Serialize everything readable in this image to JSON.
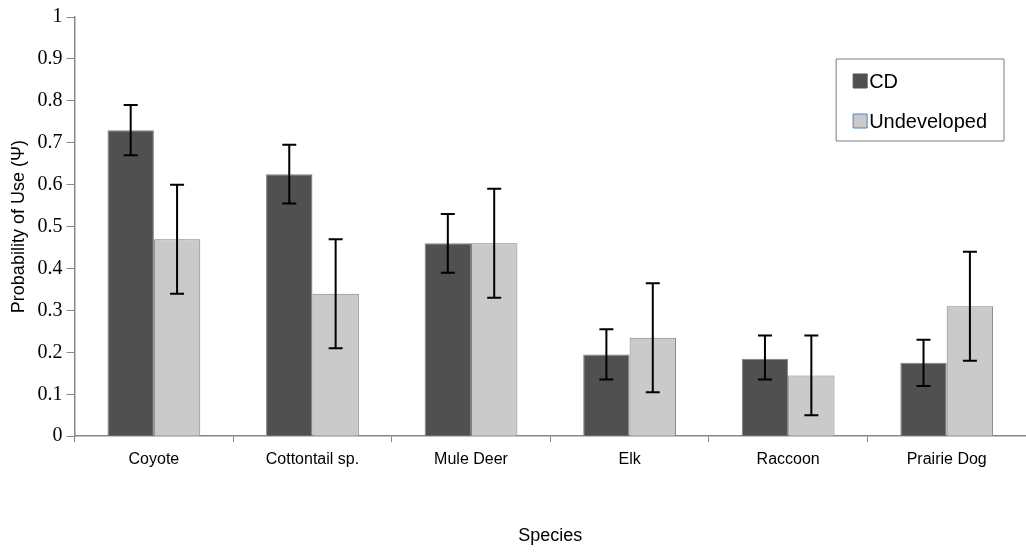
{
  "chart_data": {
    "type": "bar",
    "xlabel": "Species",
    "ylabel": "Probability of Use (Ψ)",
    "categories": [
      "Coyote",
      "Cottontail sp.",
      "Mule Deer",
      "Elk",
      "Raccoon",
      "Prairie Dog"
    ],
    "series": [
      {
        "name": "CD",
        "color": "#505050",
        "values": [
          0.73,
          0.625,
          0.46,
          0.195,
          0.185,
          0.175
        ],
        "errors": [
          [
            0.67,
            0.79
          ],
          [
            0.555,
            0.695
          ],
          [
            0.39,
            0.53
          ],
          [
            0.135,
            0.255
          ],
          [
            0.135,
            0.24
          ],
          [
            0.12,
            0.23
          ]
        ]
      },
      {
        "name": "Undeveloped",
        "color": "#cacaca",
        "values": [
          0.47,
          0.34,
          0.46,
          0.235,
          0.145,
          0.31
        ],
        "errors": [
          [
            0.34,
            0.6
          ],
          [
            0.21,
            0.47
          ],
          [
            0.33,
            0.59
          ],
          [
            0.105,
            0.365
          ],
          [
            0.05,
            0.24
          ],
          [
            0.18,
            0.44
          ]
        ]
      }
    ],
    "ylim": [
      0,
      1
    ],
    "yticks": [
      0,
      0.1,
      0.2,
      0.3,
      0.4,
      0.5,
      0.6,
      0.7,
      0.8,
      0.9,
      1
    ],
    "grid": false,
    "legend": "top right"
  }
}
